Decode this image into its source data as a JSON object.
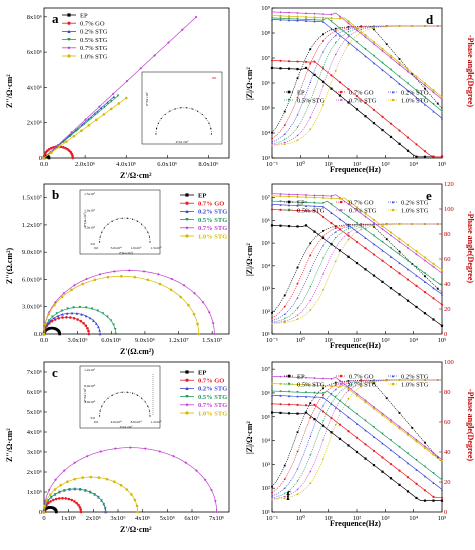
{
  "colors": {
    "series": [
      "#000000",
      "#e8191f",
      "#3a47d6",
      "#1a9b5a",
      "#c040d0",
      "#d4b800"
    ],
    "right_axis": "#c00000"
  },
  "series_names": [
    "EP",
    "0.7% GO",
    "0.2% STG",
    "0.5% STG",
    "0.7% STG",
    "1.0% STG"
  ],
  "chart_data": [
    {
      "panel": "a",
      "type": "scatter",
      "xlabel": "Z'/Ω·cm²",
      "ylabel": "Z''/Ω·cm²",
      "xticks": [
        "0.0",
        "2.0x10⁶",
        "4.0x10⁶",
        "6.0x10⁶",
        "8.0x10⁶"
      ],
      "yticks": [
        "0",
        "2x10⁶",
        "4x10⁶",
        "6x10⁶",
        "8x10⁶"
      ],
      "xlim": [
        0,
        9000000
      ],
      "ylim": [
        0,
        8500000
      ],
      "series": [
        {
          "name": "EP",
          "shape": "arc",
          "radius": 120000
        },
        {
          "name": "0.7% GO",
          "shape": "arc",
          "radius": 700000
        },
        {
          "name": "0.2% STG",
          "shape": "line",
          "x_end": 3400000,
          "slope": 1.02
        },
        {
          "name": "0.5% STG",
          "shape": "line",
          "x_end": 3600000,
          "slope": 0.98
        },
        {
          "name": "0.7% STG",
          "shape": "line",
          "x_end": 7400000,
          "slope": 1.08
        },
        {
          "name": "1.0% STG",
          "shape": "line",
          "x_end": 4000000,
          "slope": 0.85
        }
      ],
      "inset": {
        "type": "scatter",
        "shape": "semicircle",
        "xlabel": "Z'/Ω·cm²",
        "ylabel": "Z''/Ω·cm²"
      }
    },
    {
      "panel": "b",
      "type": "scatter",
      "xlabel": "Z'(Ω.cm²)",
      "ylabel": "Z''(Ω.cm²)",
      "xticks": [
        "0.0",
        "3.0x10⁶",
        "6.0x10⁶",
        "9.0x10⁶",
        "1.2x10⁷",
        "1.5x10⁷"
      ],
      "yticks": [
        "0.0",
        "3.0x10⁶",
        "6.0x10⁶",
        "9.0x10⁶",
        "1.2x10⁷",
        "1.5x10⁷"
      ],
      "xlim": [
        0,
        16500000
      ],
      "ylim": [
        0,
        16500000
      ],
      "series": [
        {
          "name": "EP",
          "shape": "arc",
          "radius": 700000
        },
        {
          "name": "0.7% GO",
          "shape": "arc",
          "radius": 2000000
        },
        {
          "name": "0.2% STG",
          "shape": "arc",
          "radius": 2500000
        },
        {
          "name": "0.5% STG",
          "shape": "arc",
          "radius": 3200000
        },
        {
          "name": "0.7% STG",
          "shape": "arc",
          "radius": 7600000
        },
        {
          "name": "1.0% STG",
          "shape": "arc",
          "radius": 6900000
        }
      ],
      "inset": {
        "type": "scatter",
        "shape": "semicircle",
        "xticks": [
          "0.0",
          "5.0x10⁴",
          "1.0x10⁵",
          "1.5x10⁵"
        ],
        "yticks": [
          "0.0",
          "5.0x10⁴",
          "1.0x10⁵",
          "1.5x10⁵"
        ],
        "xlabel": "Z'(Ω.cm²)",
        "ylabel": "Z''(Ω.cm²)"
      }
    },
    {
      "panel": "c",
      "type": "scatter",
      "xlabel": "Z'/Ω·cm²",
      "ylabel": "Z''/Ω·cm²",
      "xticks": [
        "0",
        "1x10⁶",
        "2x10⁶",
        "3x10⁶",
        "4x10⁶",
        "5x10⁶",
        "6x10⁶",
        "7x10⁶"
      ],
      "yticks": [
        "0",
        "1x10⁶",
        "2x10⁶",
        "3x10⁶",
        "4x10⁶",
        "5x10⁶",
        "6x10⁶",
        "7x10⁶"
      ],
      "xlim": [
        0,
        7500000
      ],
      "ylim": [
        0,
        7500000
      ],
      "series": [
        {
          "name": "EP",
          "shape": "arc",
          "radius": 250000
        },
        {
          "name": "0.7% GO",
          "shape": "arc",
          "radius": 750000
        },
        {
          "name": "0.2% STG",
          "shape": "arc",
          "radius": 1250000
        },
        {
          "name": "0.5% STG",
          "shape": "arc",
          "radius": 1250000
        },
        {
          "name": "0.7% STG",
          "shape": "arc",
          "radius": 3500000
        },
        {
          "name": "1.0% STG",
          "shape": "arc",
          "radius": 1900000
        }
      ],
      "inset": {
        "type": "scatter",
        "shape": "semicircle",
        "xticks": [
          "0.0",
          "4.0x10⁴",
          "8.0x10⁴",
          "1.2x10⁵"
        ],
        "yticks": [
          "0.0",
          "4.0x10⁴",
          "8.0x10⁴",
          "1.2x10⁵"
        ],
        "xlabel": "Z'/Ω·cm²",
        "ylabel": "Z''/Ω·cm²"
      }
    },
    {
      "panel": "d",
      "type": "line",
      "xlabel": "Frequence(Hz)",
      "ylabel": "|Z|/Ω·cm²",
      "ylabel_right": "-Phase angle(Degree)",
      "xticks": [
        "10⁻¹",
        "10⁰",
        "10¹",
        "10²",
        "10³",
        "10⁴",
        "10⁵"
      ],
      "yticks": [
        "10³",
        "10⁴",
        "10⁵",
        "10⁶",
        "10⁷",
        "10⁸",
        "10⁹"
      ],
      "xlim_log10": [
        -1,
        5
      ],
      "ylim_log10": [
        3,
        9
      ],
      "series": [
        {
          "name": "EP",
          "z_low": 4000000.0,
          "z_high": 40
        },
        {
          "name": "0.7% GO",
          "z_low": 8000000.0,
          "z_high": 50
        },
        {
          "name": "0.2% STG",
          "z_low": 350000000.0,
          "z_high": 20
        },
        {
          "name": "0.5% STG",
          "z_low": 400000000.0,
          "z_high": 22
        },
        {
          "name": "0.7% STG",
          "z_low": 700000000.0,
          "z_high": 40
        },
        {
          "name": "1.0% STG",
          "z_low": 500000000.0,
          "z_high": 30
        }
      ]
    },
    {
      "panel": "e",
      "type": "line",
      "xlabel": "Frequence(Hz)",
      "ylabel": "|Z|/Ω·cm²",
      "ylabel_right": "-Phase angle(Degree)",
      "xticks": [
        "10⁻¹",
        "10⁰",
        "10¹",
        "10²",
        "10³",
        "10⁴",
        "10⁵"
      ],
      "yticks": [
        "10¹",
        "10²",
        "10³",
        "10⁴",
        "10⁵",
        "10⁶",
        "10⁷"
      ],
      "yticks_right": [
        "0",
        "20",
        "40",
        "60",
        "80",
        "100",
        "120"
      ],
      "xlim_log10": [
        -1,
        5
      ],
      "ylim_log10": [
        1,
        7.6
      ],
      "series": [
        {
          "name": "EP",
          "z_low": 600000.0,
          "z_high": 10
        },
        {
          "name": "0.7% GO",
          "z_low": 3000000.0,
          "z_high": 25
        },
        {
          "name": "0.2% STG",
          "z_low": 5000000.0,
          "z_high": 40
        },
        {
          "name": "0.5% STG",
          "z_low": 7000000.0,
          "z_high": 50
        },
        {
          "name": "0.7% STG",
          "z_low": 15000000.0,
          "z_high": 80
        },
        {
          "name": "1.0% STG",
          "z_low": 12000000.0,
          "z_high": 60
        }
      ]
    },
    {
      "panel": "f",
      "type": "line",
      "xlabel": "Frequence(Hz)",
      "ylabel": "|Z|/Ω·cm²",
      "ylabel_right": "-Phase angle(Degree)",
      "xticks": [
        "10⁻¹",
        "10⁰",
        "10¹",
        "10²",
        "10³",
        "10⁴",
        "10⁵"
      ],
      "yticks": [
        "10¹",
        "10²",
        "10³",
        "10⁴",
        "10⁵",
        "10⁶",
        "10⁷"
      ],
      "yticks_right": [
        "0",
        "20",
        "40",
        "60",
        "80",
        "100"
      ],
      "xlim_log10": [
        -1,
        5
      ],
      "ylim_log10": [
        1,
        7.3
      ],
      "series": [
        {
          "name": "EP",
          "z_low": 150000.0,
          "z_high": 30
        },
        {
          "name": "0.7% GO",
          "z_low": 350000.0,
          "z_high": 40
        },
        {
          "name": "0.2% STG",
          "z_low": 800000.0,
          "z_high": 60
        },
        {
          "name": "0.5% STG",
          "z_low": 1200000.0,
          "z_high": 80
        },
        {
          "name": "0.7% STG",
          "z_low": 5000000.0,
          "z_high": 150
        },
        {
          "name": "1.0% STG",
          "z_low": 2500000.0,
          "z_high": 100
        }
      ]
    }
  ]
}
